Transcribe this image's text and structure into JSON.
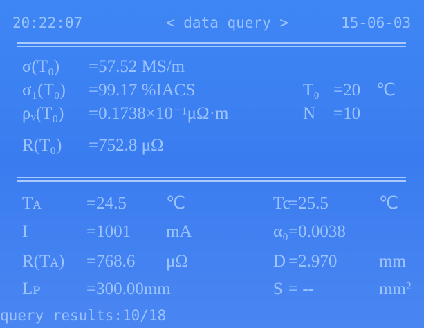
{
  "header": {
    "time": "20:22:07",
    "title": "< data query >",
    "date": "15-06-03"
  },
  "results": [
    {
      "label": "σ(T₀)",
      "value": "=57.52 MS/m"
    },
    {
      "label": "σ₁(T₀)",
      "value": "=99.17 %IACS"
    },
    {
      "label": "ρᵥ(T₀)",
      "value": "=0.1738×10⁻¹μΩ·m"
    },
    {
      "label": "R(T₀)",
      "value": "=752.8 μΩ"
    }
  ],
  "parameters": [
    {
      "label": "T₀",
      "value": "=20",
      "unit": "℃"
    },
    {
      "label": "N",
      "value": "=10"
    }
  ],
  "measurements": [
    {
      "label": "Tᴀ",
      "value": "=24.5",
      "unit": "℃"
    },
    {
      "label": "Tc",
      "value": "=25.5",
      "unit": "℃"
    },
    {
      "label": "I",
      "value": "=1001",
      "unit": "mA"
    },
    {
      "label": "α₀",
      "value": "=0.0038"
    },
    {
      "label": "R(Tᴀ)",
      "value": "=768.6",
      "unit": "μΩ"
    },
    {
      "label": "D",
      "value": "=2.970",
      "unit": "mm"
    },
    {
      "label": "Lᴘ",
      "value": "=300.00mm"
    },
    {
      "label": "S",
      "value": "= --",
      "unit": "mm²"
    }
  ],
  "footer": "query results:10/18"
}
